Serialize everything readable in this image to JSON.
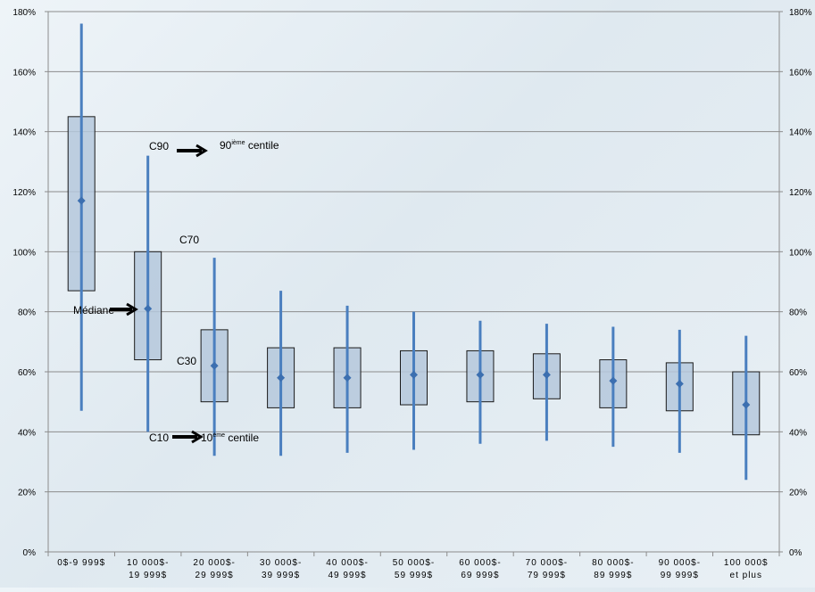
{
  "chart_data": {
    "type": "box",
    "ylim": [
      0,
      180
    ],
    "y_tick_values": [
      0,
      20,
      40,
      60,
      80,
      100,
      120,
      140,
      160,
      180
    ],
    "y_tick_labels": [
      "0%",
      "20%",
      "40%",
      "60%",
      "80%",
      "100%",
      "120%",
      "140%",
      "160%",
      "180%"
    ],
    "y_tick_labels_right": [
      "0%",
      "20%",
      "40%",
      "60%",
      "80%",
      "100%",
      "120%",
      "140%",
      "160%",
      "180%"
    ],
    "grid": true,
    "categories": [
      [
        "0$-9 999$",
        ""
      ],
      [
        "10 000$-",
        "19 999$"
      ],
      [
        "20 000$-",
        "29 999$"
      ],
      [
        "30 000$-",
        "39 999$"
      ],
      [
        "40 000$-",
        "49 999$"
      ],
      [
        "50 000$-",
        "59 999$"
      ],
      [
        "60 000$-",
        "69 999$"
      ],
      [
        "70 000$-",
        "79 999$"
      ],
      [
        "80 000$-",
        "89 999$"
      ],
      [
        "90 000$-",
        "99 999$"
      ],
      [
        "100 000$",
        "et plus"
      ]
    ],
    "c10": [
      47,
      40,
      32,
      32,
      33,
      34,
      36,
      37,
      35,
      33,
      24
    ],
    "c30": [
      87,
      64,
      50,
      48,
      48,
      49,
      50,
      51,
      48,
      47,
      39
    ],
    "median": [
      117,
      81,
      62,
      58,
      58,
      59,
      59,
      59,
      57,
      56,
      49
    ],
    "c70": [
      145,
      100,
      74,
      68,
      68,
      67,
      67,
      66,
      64,
      63,
      60
    ],
    "c90": [
      176,
      132,
      98,
      87,
      82,
      80,
      77,
      76,
      75,
      74,
      72
    ],
    "colors": {
      "whisker": "#4a7fbf",
      "box_fill": "#b5c8dc",
      "box_stroke": "#1a1a1a",
      "median_marker": "#3c6fb0",
      "grid": "#8c8c8c",
      "arrow": "#000000"
    },
    "annotations": {
      "c90": "C90",
      "c90_desc_main": "90",
      "c90_desc_sup": "ième",
      "c90_desc_rest": " centile",
      "c70": "C70",
      "median": "Médiane",
      "c30": "C30",
      "c10": "C10",
      "c10_desc_main": "10",
      "c10_desc_sup": "ème",
      "c10_desc_rest": " centile"
    }
  }
}
